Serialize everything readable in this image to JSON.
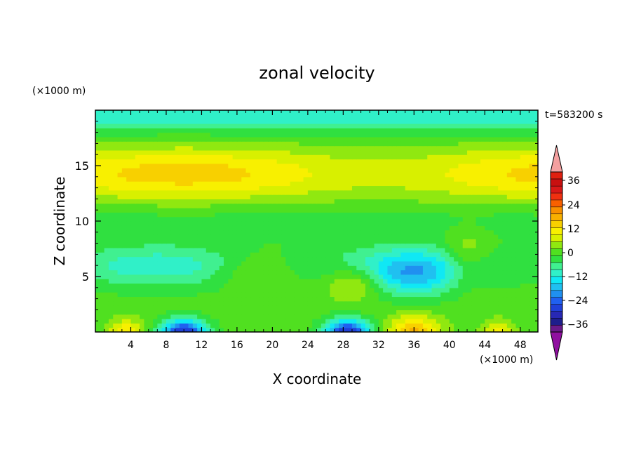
{
  "chart_data": {
    "type": "heatmap",
    "title": "zonal velocity",
    "xlabel": "X coordinate",
    "ylabel": "Z coordinate",
    "x_unit": "(×1000 m)",
    "y_unit": "(×1000 m)",
    "time_label": "t=583200 s",
    "xlim": [
      0,
      50
    ],
    "ylim": [
      0,
      20
    ],
    "x_ticks": [
      4,
      8,
      12,
      16,
      20,
      24,
      28,
      32,
      36,
      40,
      44,
      48
    ],
    "x_tick_labels": [
      "4",
      "8",
      "12",
      "16",
      "20",
      "24",
      "28",
      "32",
      "36",
      "40",
      "44",
      "48"
    ],
    "y_ticks": [
      5,
      10,
      15
    ],
    "y_tick_labels": [
      "5",
      "10",
      "15"
    ],
    "colorbar": {
      "levels": [
        -42,
        -39,
        -36,
        -33,
        -30,
        -27,
        -24,
        -21,
        -18,
        -15,
        -12,
        -9,
        -6,
        -3,
        0,
        3,
        6,
        9,
        12,
        15,
        18,
        21,
        24,
        27,
        30,
        33,
        36,
        39,
        42
      ],
      "tick_values": [
        36,
        24,
        12,
        0,
        -12,
        -24,
        -36
      ],
      "tick_labels": [
        "36",
        "24",
        "12",
        "0",
        "−12",
        "−24",
        "−36"
      ],
      "colors": [
        "#6a1a8a",
        "#1e1e8c",
        "#2828b4",
        "#2040d8",
        "#2060f0",
        "#2090f0",
        "#20c0f0",
        "#10e8f4",
        "#30f0c8",
        "#40f090",
        "#30e040",
        "#50e020",
        "#90e810",
        "#d8f000",
        "#f8f000",
        "#f8d000",
        "#f8b000",
        "#f89000",
        "#f86000",
        "#f03010",
        "#d81818",
        "#c81010",
        "#f4a0a0"
      ],
      "under_color": "#9010a0",
      "over_color": "#f4a0a0"
    },
    "field_description": "contoured zonal velocity in x–z plane; rows from z≈0 upward; values in m/s",
    "grid": false
  }
}
